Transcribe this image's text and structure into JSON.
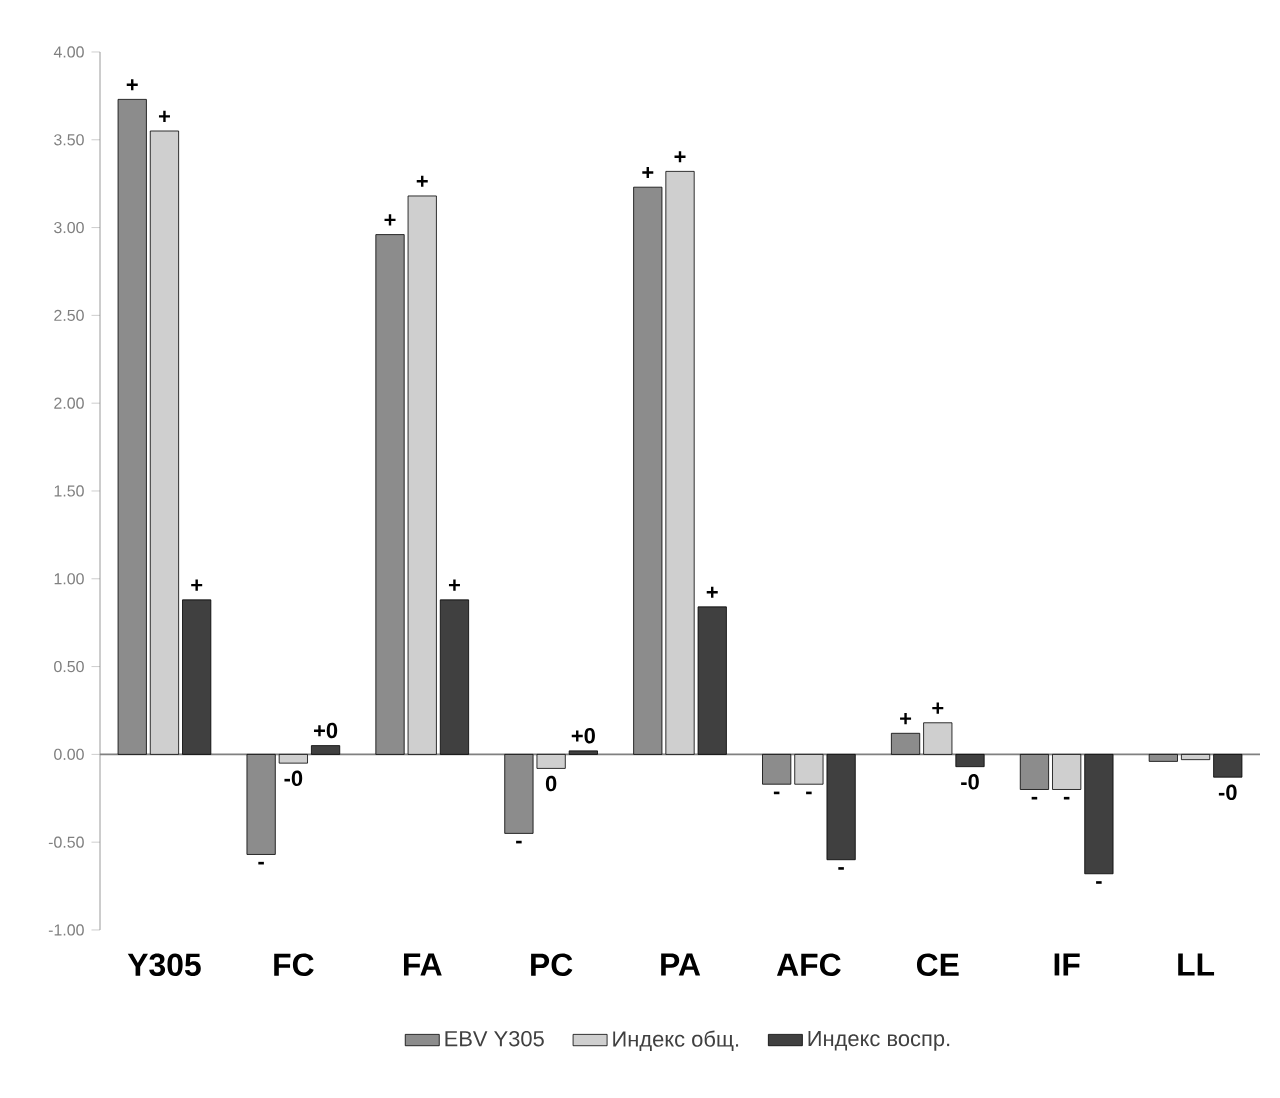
{
  "chart_data": {
    "type": "bar",
    "categories": [
      "Y305",
      "FC",
      "FA",
      "PC",
      "PA",
      "AFC",
      "CE",
      "IF",
      "LL"
    ],
    "series": [
      {
        "name": "EBV Y305",
        "color": "#8c8c8c",
        "values": [
          3.73,
          -0.57,
          2.96,
          -0.45,
          3.23,
          -0.17,
          0.12,
          -0.2,
          -0.04
        ],
        "value_labels": [
          "+",
          "-",
          "+",
          "-",
          "+",
          "-",
          "+",
          "-",
          null
        ]
      },
      {
        "name": "Индекс общ.",
        "color": "#cfcfcf",
        "values": [
          3.55,
          -0.05,
          3.18,
          -0.08,
          3.32,
          -0.17,
          0.18,
          -0.2,
          -0.03
        ],
        "value_labels": [
          "+",
          "-0",
          "+",
          "0",
          "+",
          "-",
          "+",
          "-",
          null
        ]
      },
      {
        "name": "Индекс воспр.",
        "color": "#404040",
        "values": [
          0.88,
          0.05,
          0.88,
          0.02,
          0.84,
          -0.6,
          -0.07,
          -0.68,
          -0.13
        ],
        "value_labels": [
          "+",
          "+0",
          "+",
          "+0",
          "+",
          "-",
          "-0",
          "-",
          "-0"
        ]
      }
    ],
    "ylim": [
      -1,
      4
    ],
    "yticks": [
      {
        "value": -1,
        "label": "-1.00"
      },
      {
        "value": -0.5,
        "label": "-0.50"
      },
      {
        "value": 0,
        "label": "0.00"
      },
      {
        "value": 0.5,
        "label": "0.50"
      },
      {
        "value": 1,
        "label": "1.00"
      },
      {
        "value": 1.5,
        "label": "1.50"
      },
      {
        "value": 2,
        "label": "2.00"
      },
      {
        "value": 2.5,
        "label": "2.50"
      },
      {
        "value": 3,
        "label": "3.00"
      },
      {
        "value": 3.5,
        "label": "3.50"
      },
      {
        "value": 4,
        "label": "4.00"
      }
    ],
    "legend": "bottom"
  }
}
